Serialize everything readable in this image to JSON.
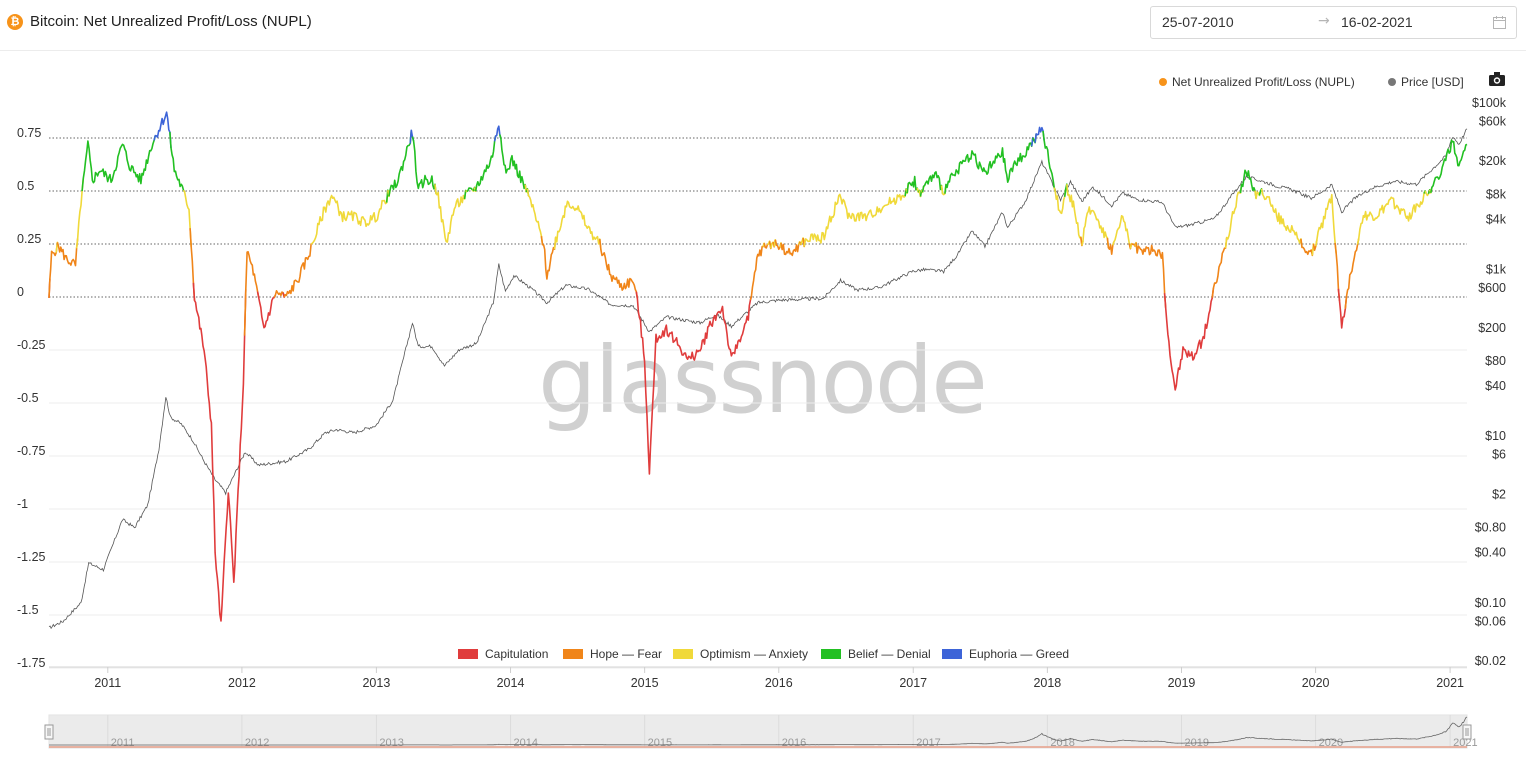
{
  "header": {
    "coin_icon": "bitcoin-icon",
    "coin_symbol": "₿",
    "title": "Bitcoin: Net Unrealized Profit/Loss (NUPL)",
    "date_from": "25-07-2010",
    "date_arrow": "→",
    "date_to": "16-02-2021",
    "calendar_icon": "calendar-icon"
  },
  "toolbar": {
    "camera_icon": "camera-icon"
  },
  "watermark": "glassnode",
  "chart_data": {
    "type": "line",
    "title": "Bitcoin: Net Unrealized Profit/Loss (NUPL)",
    "x_range": [
      "2010-07-25",
      "2021-02-16"
    ],
    "x_tick_labels": [
      "2011",
      "2012",
      "2013",
      "2014",
      "2015",
      "2016",
      "2017",
      "2018",
      "2019",
      "2020",
      "2021"
    ],
    "y_left": {
      "label": "",
      "range": [
        -1.75,
        1.0
      ],
      "tick_values": [
        0.75,
        0.5,
        0.25,
        0,
        -0.25,
        -0.5,
        -0.75,
        -1,
        -1.25,
        -1.5,
        -1.75
      ],
      "tick_labels": [
        "0.75",
        "0.5",
        "0.25",
        "0",
        "-0.25",
        "-0.5",
        "-0.75",
        "-1",
        "-1.25",
        "-1.5",
        "-1.75"
      ],
      "dotted_reference_lines": [
        0.75,
        0.5,
        0.25,
        0
      ]
    },
    "y_right": {
      "label": "",
      "scale": "log",
      "range": [
        0.02,
        100000
      ],
      "tick_values": [
        100000,
        60000,
        20000,
        8000,
        4000,
        1000,
        600,
        200,
        80,
        40,
        10,
        6,
        2,
        0.8,
        0.4,
        0.1,
        0.06,
        0.02
      ],
      "tick_labels": [
        "$100k",
        "$60k",
        "$20k",
        "$8k",
        "$4k",
        "$1k",
        "$600",
        "$200",
        "$80",
        "$40",
        "$10",
        "$6",
        "$2",
        "$0.80",
        "$0.40",
        "$0.10",
        "$0.06",
        "$0.02"
      ]
    },
    "legend_top": {
      "placement": "top-right",
      "items": [
        {
          "name": "Net Unrealized Profit/Loss (NUPL)",
          "color": "#f7931a"
        },
        {
          "name": "Price [USD]",
          "color": "#777777"
        }
      ]
    },
    "zones": {
      "placement": "bottom-center",
      "items": [
        {
          "name": "Capitulation",
          "color": "#e03c3c",
          "range": [
            -10,
            0
          ]
        },
        {
          "name": "Hope — Fear",
          "color": "#f08519",
          "range": [
            0,
            0.25
          ]
        },
        {
          "name": "Optimism — Anxiety",
          "color": "#f0d93a",
          "range": [
            0.25,
            0.5
          ]
        },
        {
          "name": "Belief — Denial",
          "color": "#22c022",
          "range": [
            0.5,
            0.75
          ]
        },
        {
          "name": "Euphoria — Greed",
          "color": "#3d64d8",
          "range": [
            0.75,
            10
          ]
        }
      ]
    },
    "series": [
      {
        "name": "Net Unrealized Profit/Loss (NUPL)",
        "axis": "left",
        "points": [
          [
            "2010-07-25",
            0.0
          ],
          [
            "2010-08-01",
            0.2
          ],
          [
            "2010-08-20",
            0.24
          ],
          [
            "2010-09-10",
            0.18
          ],
          [
            "2010-10-05",
            0.15
          ],
          [
            "2010-10-20",
            0.45
          ],
          [
            "2010-11-08",
            0.72
          ],
          [
            "2010-11-20",
            0.55
          ],
          [
            "2010-12-10",
            0.6
          ],
          [
            "2011-01-10",
            0.55
          ],
          [
            "2011-02-10",
            0.72
          ],
          [
            "2011-03-01",
            0.62
          ],
          [
            "2011-04-01",
            0.55
          ],
          [
            "2011-05-01",
            0.72
          ],
          [
            "2011-06-10",
            0.87
          ],
          [
            "2011-07-01",
            0.6
          ],
          [
            "2011-07-20",
            0.52
          ],
          [
            "2011-08-10",
            0.42
          ],
          [
            "2011-08-25",
            0.0
          ],
          [
            "2011-09-20",
            -0.25
          ],
          [
            "2011-10-10",
            -0.6
          ],
          [
            "2011-10-20",
            -1.2
          ],
          [
            "2011-11-05",
            -1.55
          ],
          [
            "2011-11-25",
            -0.9
          ],
          [
            "2011-12-10",
            -1.35
          ],
          [
            "2012-01-05",
            -0.4
          ],
          [
            "2012-01-15",
            0.22
          ],
          [
            "2012-02-01",
            0.12
          ],
          [
            "2012-03-01",
            -0.15
          ],
          [
            "2012-04-01",
            0.02
          ],
          [
            "2012-05-01",
            0.0
          ],
          [
            "2012-06-01",
            0.08
          ],
          [
            "2012-07-01",
            0.2
          ],
          [
            "2012-08-10",
            0.4
          ],
          [
            "2012-09-01",
            0.48
          ],
          [
            "2012-10-01",
            0.38
          ],
          [
            "2012-11-01",
            0.38
          ],
          [
            "2012-12-01",
            0.35
          ],
          [
            "2013-01-01",
            0.38
          ],
          [
            "2013-02-01",
            0.48
          ],
          [
            "2013-03-01",
            0.55
          ],
          [
            "2013-04-09",
            0.78
          ],
          [
            "2013-04-25",
            0.5
          ],
          [
            "2013-05-10",
            0.55
          ],
          [
            "2013-06-01",
            0.55
          ],
          [
            "2013-06-15",
            0.5
          ],
          [
            "2013-07-10",
            0.25
          ],
          [
            "2013-08-01",
            0.42
          ],
          [
            "2013-09-01",
            0.48
          ],
          [
            "2013-10-01",
            0.52
          ],
          [
            "2013-11-10",
            0.65
          ],
          [
            "2013-11-30",
            0.82
          ],
          [
            "2013-12-20",
            0.58
          ],
          [
            "2014-01-05",
            0.65
          ],
          [
            "2014-02-01",
            0.55
          ],
          [
            "2014-02-25",
            0.45
          ],
          [
            "2014-04-01",
            0.25
          ],
          [
            "2014-04-10",
            0.1
          ],
          [
            "2014-05-01",
            0.25
          ],
          [
            "2014-06-05",
            0.45
          ],
          [
            "2014-07-01",
            0.42
          ],
          [
            "2014-08-01",
            0.32
          ],
          [
            "2014-09-01",
            0.25
          ],
          [
            "2014-10-01",
            0.1
          ],
          [
            "2014-11-01",
            0.05
          ],
          [
            "2014-12-01",
            0.08
          ],
          [
            "2014-12-15",
            -0.05
          ],
          [
            "2015-01-01",
            -0.3
          ],
          [
            "2015-01-14",
            -0.82
          ],
          [
            "2015-02-01",
            -0.2
          ],
          [
            "2015-03-01",
            -0.15
          ],
          [
            "2015-04-01",
            -0.22
          ],
          [
            "2015-05-01",
            -0.3
          ],
          [
            "2015-06-01",
            -0.25
          ],
          [
            "2015-07-01",
            -0.12
          ],
          [
            "2015-08-01",
            -0.05
          ],
          [
            "2015-08-25",
            -0.3
          ],
          [
            "2015-09-15",
            -0.2
          ],
          [
            "2015-10-10",
            -0.1
          ],
          [
            "2015-11-05",
            0.2
          ],
          [
            "2015-12-01",
            0.25
          ],
          [
            "2016-01-01",
            0.25
          ],
          [
            "2016-02-01",
            0.2
          ],
          [
            "2016-03-01",
            0.25
          ],
          [
            "2016-04-01",
            0.28
          ],
          [
            "2016-05-01",
            0.28
          ],
          [
            "2016-06-15",
            0.48
          ],
          [
            "2016-07-10",
            0.38
          ],
          [
            "2016-08-01",
            0.38
          ],
          [
            "2016-09-01",
            0.38
          ],
          [
            "2016-10-01",
            0.42
          ],
          [
            "2016-11-01",
            0.45
          ],
          [
            "2016-12-01",
            0.48
          ],
          [
            "2017-01-05",
            0.55
          ],
          [
            "2017-01-15",
            0.48
          ],
          [
            "2017-02-01",
            0.52
          ],
          [
            "2017-03-01",
            0.58
          ],
          [
            "2017-03-25",
            0.5
          ],
          [
            "2017-05-01",
            0.6
          ],
          [
            "2017-06-10",
            0.68
          ],
          [
            "2017-07-15",
            0.58
          ],
          [
            "2017-08-01",
            0.62
          ],
          [
            "2017-09-01",
            0.68
          ],
          [
            "2017-09-15",
            0.55
          ],
          [
            "2017-10-01",
            0.62
          ],
          [
            "2017-11-01",
            0.68
          ],
          [
            "2017-12-17",
            0.79
          ],
          [
            "2018-01-05",
            0.65
          ],
          [
            "2018-02-06",
            0.38
          ],
          [
            "2018-02-20",
            0.52
          ],
          [
            "2018-03-10",
            0.45
          ],
          [
            "2018-04-05",
            0.25
          ],
          [
            "2018-04-25",
            0.42
          ],
          [
            "2018-05-15",
            0.38
          ],
          [
            "2018-06-25",
            0.22
          ],
          [
            "2018-07-25",
            0.38
          ],
          [
            "2018-08-15",
            0.25
          ],
          [
            "2018-09-15",
            0.22
          ],
          [
            "2018-10-15",
            0.22
          ],
          [
            "2018-11-10",
            0.2
          ],
          [
            "2018-11-25",
            -0.2
          ],
          [
            "2018-12-15",
            -0.43
          ],
          [
            "2019-01-05",
            -0.25
          ],
          [
            "2019-02-01",
            -0.28
          ],
          [
            "2019-03-01",
            -0.2
          ],
          [
            "2019-04-01",
            0.05
          ],
          [
            "2019-05-01",
            0.25
          ],
          [
            "2019-05-20",
            0.38
          ],
          [
            "2019-06-26",
            0.6
          ],
          [
            "2019-07-20",
            0.48
          ],
          [
            "2019-08-10",
            0.5
          ],
          [
            "2019-09-20",
            0.38
          ],
          [
            "2019-10-25",
            0.32
          ],
          [
            "2019-11-25",
            0.25
          ],
          [
            "2019-12-20",
            0.2
          ],
          [
            "2020-01-20",
            0.35
          ],
          [
            "2020-02-14",
            0.48
          ],
          [
            "2020-03-12",
            -0.15
          ],
          [
            "2020-03-25",
            0.0
          ],
          [
            "2020-04-15",
            0.2
          ],
          [
            "2020-05-10",
            0.38
          ],
          [
            "2020-06-15",
            0.38
          ],
          [
            "2020-07-25",
            0.45
          ],
          [
            "2020-08-15",
            0.42
          ],
          [
            "2020-09-10",
            0.38
          ],
          [
            "2020-10-25",
            0.48
          ],
          [
            "2020-11-25",
            0.55
          ],
          [
            "2020-12-20",
            0.65
          ],
          [
            "2021-01-08",
            0.73
          ],
          [
            "2021-01-25",
            0.6
          ],
          [
            "2021-02-16",
            0.72
          ]
        ]
      },
      {
        "name": "Price [USD]",
        "axis": "right",
        "points": [
          [
            "2010-07-25",
            0.05
          ],
          [
            "2010-09-01",
            0.06
          ],
          [
            "2010-10-20",
            0.1
          ],
          [
            "2010-11-10",
            0.3
          ],
          [
            "2010-12-20",
            0.25
          ],
          [
            "2011-02-10",
            1.0
          ],
          [
            "2011-03-15",
            0.8
          ],
          [
            "2011-04-20",
            1.5
          ],
          [
            "2011-05-20",
            7
          ],
          [
            "2011-06-08",
            30
          ],
          [
            "2011-06-20",
            17
          ],
          [
            "2011-07-20",
            14
          ],
          [
            "2011-08-20",
            9
          ],
          [
            "2011-09-20",
            5
          ],
          [
            "2011-10-20",
            3
          ],
          [
            "2011-11-18",
            2.1
          ],
          [
            "2012-01-10",
            6.5
          ],
          [
            "2012-02-15",
            4.5
          ],
          [
            "2012-05-01",
            5
          ],
          [
            "2012-07-01",
            7
          ],
          [
            "2012-08-15",
            11
          ],
          [
            "2012-09-15",
            12
          ],
          [
            "2012-11-01",
            11
          ],
          [
            "2012-12-31",
            13.5
          ],
          [
            "2013-02-15",
            27
          ],
          [
            "2013-04-09",
            230
          ],
          [
            "2013-04-25",
            120
          ],
          [
            "2013-06-01",
            120
          ],
          [
            "2013-07-05",
            70
          ],
          [
            "2013-08-15",
            110
          ],
          [
            "2013-10-01",
            130
          ],
          [
            "2013-11-15",
            400
          ],
          [
            "2013-11-30",
            1150
          ],
          [
            "2013-12-18",
            550
          ],
          [
            "2014-01-10",
            850
          ],
          [
            "2014-03-01",
            580
          ],
          [
            "2014-04-10",
            400
          ],
          [
            "2014-06-01",
            650
          ],
          [
            "2014-08-01",
            580
          ],
          [
            "2014-10-01",
            380
          ],
          [
            "2014-12-01",
            370
          ],
          [
            "2015-01-14",
            180
          ],
          [
            "2015-03-01",
            270
          ],
          [
            "2015-06-01",
            230
          ],
          [
            "2015-07-15",
            290
          ],
          [
            "2015-08-25",
            210
          ],
          [
            "2015-11-05",
            400
          ],
          [
            "2016-01-01",
            430
          ],
          [
            "2016-05-01",
            450
          ],
          [
            "2016-06-17",
            740
          ],
          [
            "2016-08-01",
            570
          ],
          [
            "2016-10-01",
            610
          ],
          [
            "2016-12-31",
            960
          ],
          [
            "2017-02-01",
            1000
          ],
          [
            "2017-03-25",
            950
          ],
          [
            "2017-05-01",
            1500
          ],
          [
            "2017-06-10",
            2900
          ],
          [
            "2017-07-15",
            1900
          ],
          [
            "2017-09-01",
            4900
          ],
          [
            "2017-09-15",
            3200
          ],
          [
            "2017-11-01",
            6500
          ],
          [
            "2017-12-17",
            19500
          ],
          [
            "2018-02-06",
            6900
          ],
          [
            "2018-03-05",
            11400
          ],
          [
            "2018-04-05",
            6600
          ],
          [
            "2018-05-05",
            9800
          ],
          [
            "2018-06-25",
            5900
          ],
          [
            "2018-07-25",
            8300
          ],
          [
            "2018-09-01",
            7000
          ],
          [
            "2018-11-10",
            6400
          ],
          [
            "2018-12-15",
            3200
          ],
          [
            "2019-02-01",
            3500
          ],
          [
            "2019-04-01",
            4100
          ],
          [
            "2019-05-20",
            8000
          ],
          [
            "2019-06-26",
            13000
          ],
          [
            "2019-08-10",
            11500
          ],
          [
            "2019-09-20",
            10000
          ],
          [
            "2019-10-25",
            9200
          ],
          [
            "2019-12-20",
            7200
          ],
          [
            "2020-02-14",
            10300
          ],
          [
            "2020-03-12",
            4900
          ],
          [
            "2020-04-15",
            7100
          ],
          [
            "2020-06-01",
            9500
          ],
          [
            "2020-08-01",
            11500
          ],
          [
            "2020-10-01",
            10600
          ],
          [
            "2020-11-25",
            18000
          ],
          [
            "2020-12-20",
            23000
          ],
          [
            "2021-01-08",
            40000
          ],
          [
            "2021-01-25",
            32000
          ],
          [
            "2021-02-16",
            49000
          ]
        ]
      }
    ]
  },
  "navigator": {
    "tick_labels": [
      "2011",
      "2012",
      "2013",
      "2014",
      "2015",
      "2016",
      "2017",
      "2018",
      "2019",
      "2020",
      "2021"
    ],
    "left_handle_icon": "drag-handle-icon",
    "right_handle_icon": "drag-handle-icon"
  }
}
